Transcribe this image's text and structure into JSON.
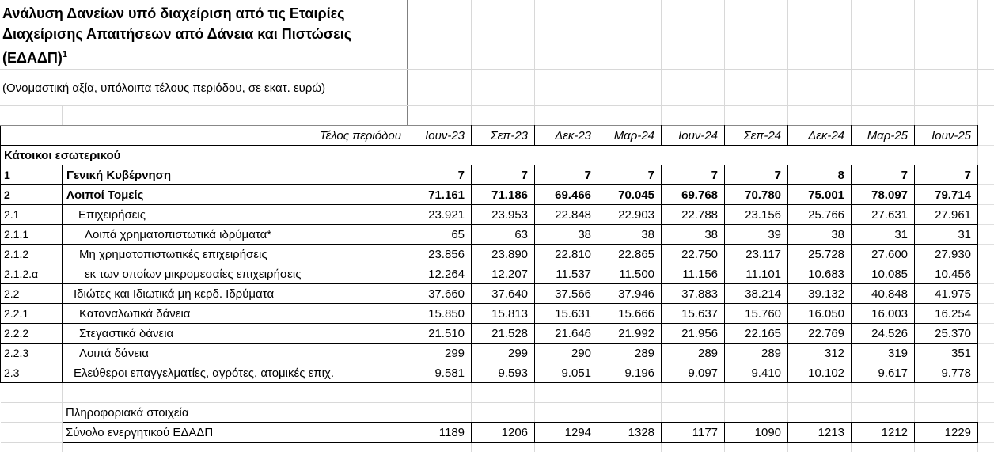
{
  "header": {
    "title": "Ανάλυση Δανείων υπό διαχείριση από τις Εταιρίες Διαχείρισης Απαιτήσεων από Δάνεια και Πιστώσεις (ΕΔΑΔΠ)",
    "footnote_marker": "1",
    "subtitle": "(Ονομαστική αξία, υπόλοιπα τέλους περιόδου, σε εκατ. ευρώ)"
  },
  "table": {
    "period_label": "Τέλος περιόδου",
    "columns": [
      "Ιουν-23",
      "Σεπ-23",
      "Δεκ-23",
      "Μαρ-24",
      "Ιουν-24",
      "Σεπ-24",
      "Δεκ-24",
      "Μαρ-25",
      "Ιουν-25"
    ],
    "section_header": "Κάτοικοι εσωτερικού",
    "rows": [
      {
        "code": "1",
        "label": "Γενική Κυβέρνηση",
        "bold": true,
        "indent": 5,
        "values": [
          "7",
          "7",
          "7",
          "7",
          "7",
          "7",
          "8",
          "7",
          "7"
        ]
      },
      {
        "code": "2",
        "label": "Λοιποί Τομείς",
        "bold": true,
        "indent": 5,
        "values": [
          "71.161",
          "71.186",
          "69.466",
          "70.045",
          "69.768",
          "70.780",
          "75.001",
          "78.097",
          "79.714"
        ]
      },
      {
        "code": "2.1",
        "label": "Επιχειρήσεις",
        "bold": false,
        "indent": 20,
        "values": [
          "23.921",
          "23.953",
          "22.848",
          "22.903",
          "22.788",
          "23.156",
          "25.766",
          "27.631",
          "27.961"
        ]
      },
      {
        "code": "2.1.1",
        "label": "Λοιπά χρηματοπιστωτικά ιδρύματα*",
        "bold": false,
        "indent": 28,
        "values": [
          "65",
          "63",
          "38",
          "38",
          "38",
          "39",
          "38",
          "31",
          "31"
        ]
      },
      {
        "code": "2.1.2",
        "label": "Μη χρηματοπιστωτικές επιχειρήσεις",
        "bold": false,
        "indent": 21,
        "values": [
          "23.856",
          "23.890",
          "22.810",
          "22.865",
          "22.750",
          "23.117",
          "25.728",
          "27.600",
          "27.930"
        ]
      },
      {
        "code": "2.1.2.α",
        "label": "εκ των οποίων μικρομεσαίες επιχειρήσεις",
        "bold": false,
        "indent": 28,
        "values": [
          "12.264",
          "12.207",
          "11.537",
          "11.500",
          "11.156",
          "11.101",
          "10.683",
          "10.085",
          "10.456"
        ]
      },
      {
        "code": "2.2",
        "label": "Ιδιώτες και Ιδιωτικά μη κερδ. Ιδρύματα",
        "bold": false,
        "indent": 14,
        "values": [
          "37.660",
          "37.640",
          "37.566",
          "37.946",
          "37.883",
          "38.214",
          "39.132",
          "40.848",
          "41.975"
        ]
      },
      {
        "code": "2.2.1",
        "label": "Καταναλωτικά δάνεια",
        "bold": false,
        "indent": 21,
        "values": [
          "15.850",
          "15.813",
          "15.631",
          "15.666",
          "15.637",
          "15.760",
          "16.050",
          "16.003",
          "16.254"
        ]
      },
      {
        "code": "2.2.2",
        "label": "Στεγαστικά δάνεια",
        "bold": false,
        "indent": 21,
        "values": [
          "21.510",
          "21.528",
          "21.646",
          "21.992",
          "21.956",
          "22.165",
          "22.769",
          "24.526",
          "25.370"
        ]
      },
      {
        "code": "2.2.3",
        "label": "Λοιπά δάνεια",
        "bold": false,
        "indent": 21,
        "values": [
          "299",
          "299",
          "290",
          "289",
          "289",
          "289",
          "312",
          "319",
          "351"
        ]
      },
      {
        "code": "2.3",
        "label": "Ελεύθεροι επαγγελματίες, αγρότες, ατομικές επιχ.",
        "bold": false,
        "indent": 14,
        "values": [
          "9.581",
          "9.593",
          "9.051",
          "9.196",
          "9.097",
          "9.410",
          "10.102",
          "9.617",
          "9.778"
        ]
      }
    ],
    "info_label": "Πληροφοριακά στοιχεία",
    "total_row": {
      "label": "Σύνολο ενεργητικού ΕΔΑΔΠ",
      "values": [
        "1189",
        "1206",
        "1294",
        "1328",
        "1177",
        "1090",
        "1213",
        "1212",
        "1229"
      ]
    }
  },
  "colors": {
    "text": "#000000",
    "table_border": "#000000",
    "gridline": "#d8d8d8"
  }
}
